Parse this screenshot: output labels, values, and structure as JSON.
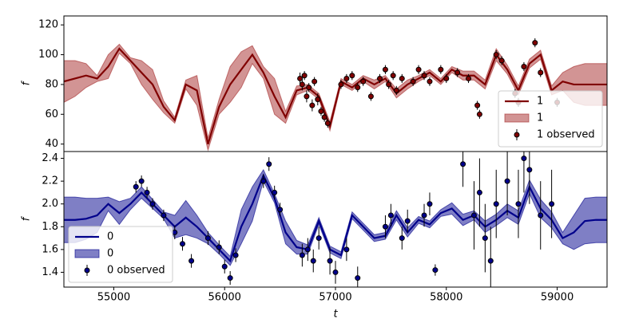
{
  "chart_data": [
    {
      "type": "line",
      "ylabel": "f",
      "x": [
        54550,
        54650,
        54750,
        54850,
        54950,
        55050,
        55150,
        55250,
        55350,
        55450,
        55550,
        55650,
        55750,
        55850,
        55950,
        56050,
        56150,
        56250,
        56350,
        56450,
        56550,
        56650,
        56750,
        56850,
        56950,
        57050,
        57150,
        57250,
        57350,
        57450,
        57550,
        57650,
        57750,
        57850,
        57950,
        58050,
        58150,
        58250,
        58350,
        58450,
        58550,
        58650,
        58750,
        58850,
        58950,
        59050,
        59150,
        59250,
        59350,
        59450
      ],
      "series": [
        {
          "name": "1",
          "color": "#800000",
          "values": [
            82,
            84,
            86,
            84,
            92,
            104,
            96,
            88,
            80,
            65,
            56,
            80,
            76,
            40,
            65,
            80,
            90,
            100,
            88,
            72,
            58,
            76,
            78,
            72,
            52,
            82,
            78,
            84,
            80,
            84,
            74,
            80,
            84,
            88,
            82,
            90,
            86,
            86,
            80,
            100,
            90,
            76,
            94,
            100,
            76,
            82,
            80,
            80,
            80,
            80
          ]
        }
      ],
      "band": {
        "name": "1",
        "color": "#a52a2a",
        "lower": [
          68,
          72,
          78,
          82,
          84,
          101,
          94,
          80,
          70,
          61,
          54,
          77,
          66,
          36,
          60,
          68,
          78,
          94,
          84,
          60,
          54,
          73,
          76,
          70,
          49,
          80,
          76,
          82,
          77,
          82,
          71,
          77,
          82,
          86,
          80,
          88,
          83,
          83,
          77,
          96,
          87,
          73,
          91,
          97,
          73,
          76,
          68,
          66,
          66,
          66
        ],
        "upper": [
          96,
          96,
          94,
          86,
          100,
          107,
          98,
          96,
          90,
          69,
          58,
          83,
          86,
          44,
          70,
          92,
          102,
          106,
          92,
          84,
          62,
          79,
          80,
          74,
          55,
          84,
          80,
          86,
          83,
          86,
          77,
          83,
          86,
          90,
          84,
          92,
          89,
          89,
          83,
          104,
          93,
          79,
          97,
          103,
          79,
          88,
          92,
          94,
          94,
          94
        ]
      },
      "observed": {
        "name": "1 observed",
        "color": "#800000",
        "x": [
          56680,
          56700,
          56720,
          56740,
          56760,
          56790,
          56810,
          56840,
          56870,
          56900,
          56930,
          57050,
          57100,
          57150,
          57200,
          57250,
          57320,
          57400,
          57450,
          57480,
          57520,
          57550,
          57600,
          57700,
          57750,
          57800,
          57850,
          57950,
          58000,
          58100,
          58200,
          58280,
          58300,
          58450,
          58500,
          58620,
          58650,
          58700,
          58800,
          58850,
          59000
        ],
        "values": [
          84,
          80,
          86,
          72,
          78,
          66,
          82,
          70,
          62,
          58,
          54,
          80,
          84,
          86,
          78,
          82,
          72,
          84,
          90,
          80,
          86,
          76,
          84,
          82,
          90,
          86,
          82,
          90,
          84,
          88,
          84,
          66,
          60,
          100,
          96,
          74,
          68,
          92,
          108,
          88,
          68
        ],
        "errors": [
          4,
          4,
          3,
          4,
          3,
          4,
          3,
          4,
          3,
          3,
          3,
          3,
          3,
          3,
          3,
          3,
          3,
          3,
          3,
          3,
          3,
          3,
          3,
          3,
          3,
          3,
          3,
          3,
          3,
          3,
          3,
          3,
          3,
          3,
          3,
          3,
          3,
          3,
          3,
          3,
          3
        ]
      },
      "xlim": [
        54550,
        59450
      ],
      "ylim": [
        35,
        126
      ],
      "yticks": [
        40,
        60,
        80,
        100,
        120
      ],
      "legend": "lower right"
    },
    {
      "type": "line",
      "ylabel": "f",
      "xlabel": "t",
      "x": [
        54550,
        54650,
        54750,
        54850,
        54950,
        55050,
        55150,
        55250,
        55350,
        55450,
        55550,
        55650,
        55750,
        55850,
        55950,
        56050,
        56150,
        56250,
        56350,
        56450,
        56550,
        56650,
        56750,
        56850,
        56950,
        57050,
        57150,
        57250,
        57350,
        57450,
        57550,
        57650,
        57750,
        57850,
        57950,
        58050,
        58150,
        58250,
        58350,
        58450,
        58550,
        58650,
        58750,
        58850,
        58950,
        59050,
        59150,
        59250,
        59350,
        59450
      ],
      "series": [
        {
          "name": "0",
          "color": "#00008b",
          "values": [
            1.86,
            1.86,
            1.87,
            1.9,
            2.0,
            1.92,
            2.0,
            2.1,
            2.0,
            1.9,
            1.8,
            1.88,
            1.8,
            1.7,
            1.6,
            1.5,
            1.8,
            2.0,
            2.25,
            2.05,
            1.75,
            1.62,
            1.6,
            1.85,
            1.6,
            1.55,
            1.9,
            1.8,
            1.7,
            1.72,
            1.9,
            1.75,
            1.86,
            1.82,
            1.92,
            1.96,
            1.86,
            1.9,
            1.8,
            1.86,
            1.94,
            1.88,
            2.15,
            1.96,
            1.86,
            1.7,
            1.75,
            1.85,
            1.86,
            1.86
          ]
        }
      ],
      "band": {
        "name": "0",
        "color": "#00008b",
        "lower": [
          1.66,
          1.66,
          1.69,
          1.75,
          1.94,
          1.82,
          1.95,
          2.05,
          1.96,
          1.87,
          1.7,
          1.73,
          1.7,
          1.65,
          1.56,
          1.46,
          1.65,
          1.85,
          2.2,
          2.01,
          1.65,
          1.56,
          1.56,
          1.82,
          1.57,
          1.52,
          1.87,
          1.77,
          1.67,
          1.69,
          1.86,
          1.71,
          1.83,
          1.79,
          1.89,
          1.91,
          1.81,
          1.86,
          1.75,
          1.81,
          1.88,
          1.82,
          2.09,
          1.88,
          1.79,
          1.65,
          1.6,
          1.65,
          1.66,
          1.66
        ],
        "upper": [
          2.06,
          2.06,
          2.05,
          2.05,
          2.06,
          2.02,
          2.05,
          2.15,
          2.04,
          1.93,
          1.9,
          2.03,
          1.9,
          1.75,
          1.64,
          1.54,
          1.95,
          2.15,
          2.3,
          2.09,
          1.85,
          1.68,
          1.64,
          1.88,
          1.63,
          1.58,
          1.93,
          1.83,
          1.73,
          1.75,
          1.94,
          1.79,
          1.89,
          1.85,
          1.95,
          2.01,
          1.91,
          1.94,
          1.85,
          1.91,
          2.0,
          1.94,
          2.21,
          2.04,
          1.93,
          1.75,
          1.9,
          2.05,
          2.06,
          2.06
        ]
      },
      "observed": {
        "name": "0 observed",
        "color": "#00008b",
        "x": [
          55200,
          55250,
          55300,
          55350,
          55450,
          55550,
          55620,
          55700,
          55850,
          55950,
          56000,
          56050,
          56100,
          56350,
          56400,
          56450,
          56500,
          56700,
          56750,
          56800,
          56850,
          56950,
          57000,
          57100,
          57200,
          57450,
          57500,
          57600,
          57650,
          57800,
          57850,
          57900,
          58150,
          58250,
          58300,
          58350,
          58400,
          58450,
          58550,
          58650,
          58700,
          58750,
          58850,
          58950
        ],
        "values": [
          2.15,
          2.2,
          2.1,
          2.0,
          1.9,
          1.75,
          1.65,
          1.5,
          1.7,
          1.62,
          1.45,
          1.35,
          1.55,
          2.2,
          2.35,
          2.1,
          1.95,
          1.55,
          1.6,
          1.5,
          1.7,
          1.5,
          1.4,
          1.6,
          1.35,
          1.8,
          1.9,
          1.7,
          1.85,
          1.9,
          2.0,
          1.42,
          2.35,
          1.9,
          2.1,
          1.7,
          1.5,
          2.0,
          2.2,
          2.0,
          2.4,
          2.3,
          1.9,
          2.0
        ],
        "errors": [
          0.05,
          0.05,
          0.05,
          0.05,
          0.05,
          0.06,
          0.06,
          0.06,
          0.06,
          0.06,
          0.06,
          0.06,
          0.06,
          0.06,
          0.06,
          0.06,
          0.06,
          0.1,
          0.1,
          0.1,
          0.1,
          0.12,
          0.1,
          0.1,
          0.1,
          0.1,
          0.1,
          0.1,
          0.1,
          0.1,
          0.1,
          0.05,
          0.2,
          0.3,
          0.3,
          0.3,
          0.3,
          0.3,
          0.3,
          0.3,
          0.3,
          0.3,
          0.3,
          0.3
        ]
      },
      "xlim": [
        54550,
        59450
      ],
      "xticks": [
        55000,
        56000,
        57000,
        58000,
        59000
      ],
      "ylim": [
        1.27,
        2.46
      ],
      "yticks": [
        1.4,
        1.6,
        1.8,
        {
          "value": 2,
          "label": "2.0"
        },
        2.2,
        2.4
      ],
      "legend": "lower left"
    }
  ]
}
